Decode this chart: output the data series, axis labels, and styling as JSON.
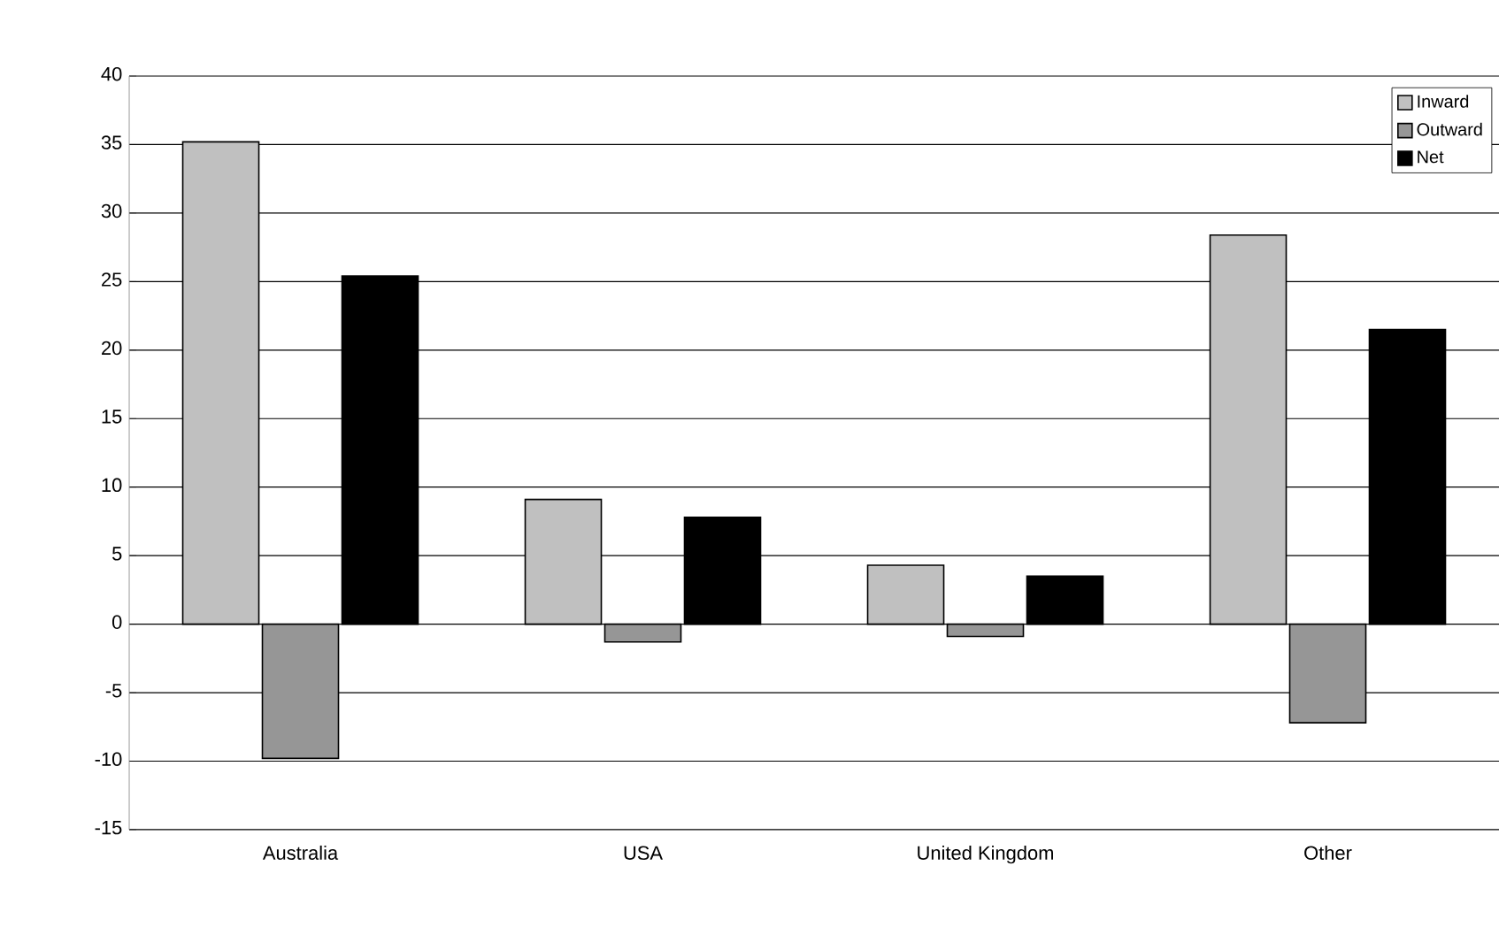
{
  "chart_data": {
    "type": "bar",
    "categories": [
      "Australia",
      "USA",
      "United Kingdom",
      "Other"
    ],
    "series": [
      {
        "name": "Inward",
        "color": "#c0c0c0",
        "values": [
          35.2,
          9.1,
          4.3,
          28.4
        ]
      },
      {
        "name": "Outward",
        "color": "#969696",
        "values": [
          -9.8,
          -1.3,
          -0.9,
          -7.2
        ]
      },
      {
        "name": "Net",
        "color": "#000000",
        "values": [
          25.4,
          7.8,
          3.5,
          21.5
        ]
      }
    ],
    "ylim": [
      -15,
      40
    ],
    "yticks": [
      -15,
      -10,
      -5,
      0,
      5,
      10,
      15,
      20,
      25,
      30,
      35,
      40
    ],
    "grid": "y",
    "legend": "top right"
  }
}
